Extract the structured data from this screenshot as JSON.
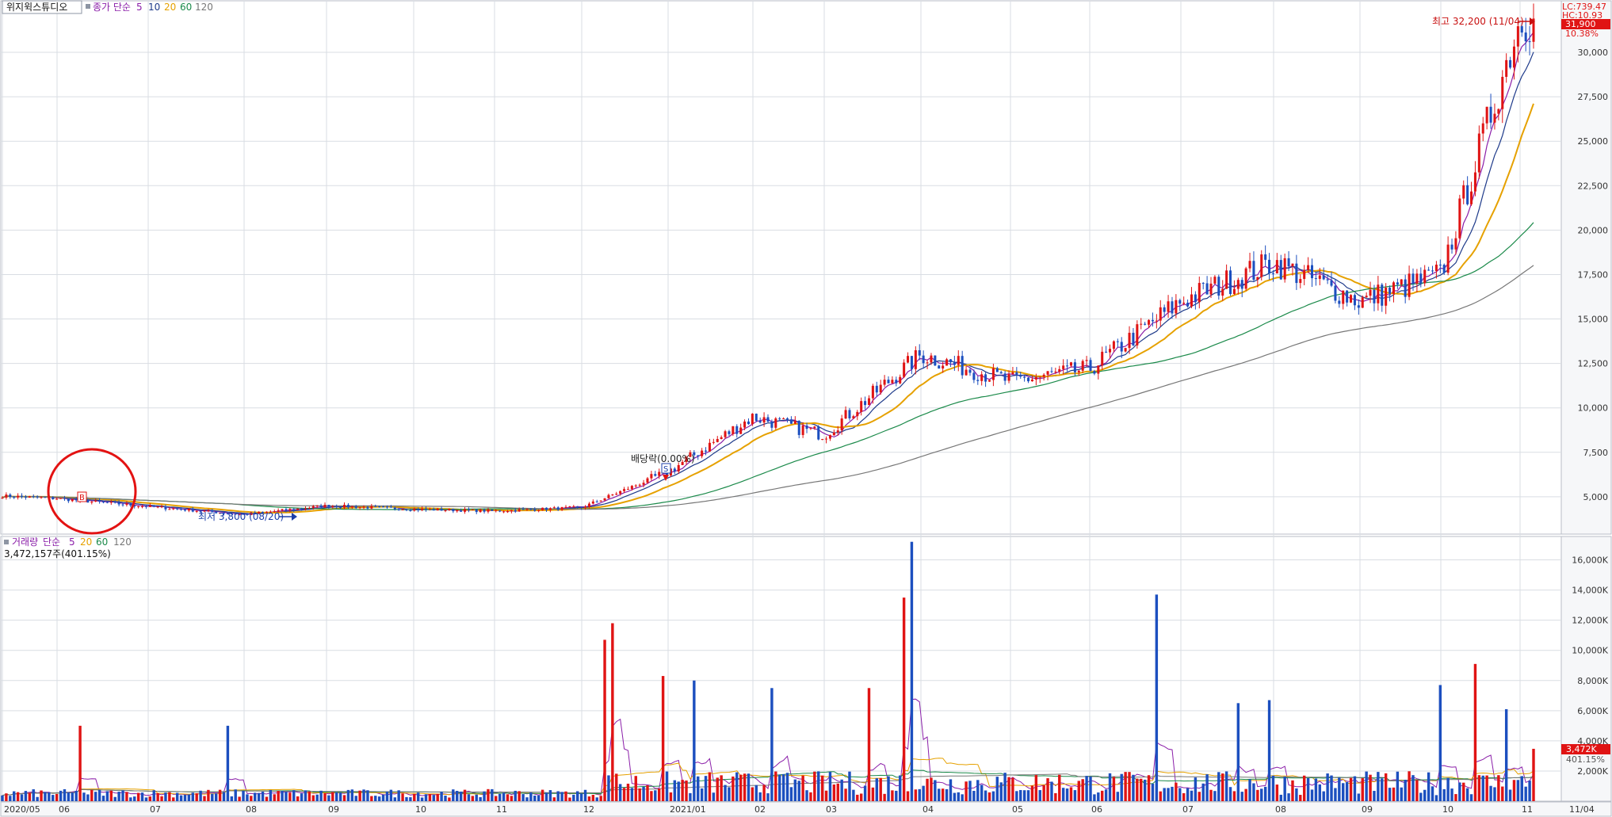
{
  "header": {
    "stock_name": "위지윅스튜디오",
    "price_label": "종가 단순",
    "ma_periods": [
      "5",
      "10",
      "20",
      "60",
      "120"
    ],
    "ma_colors": [
      "#8b1fa9",
      "#1e3a8a",
      "#e6a100",
      "#1b8a4a",
      "#777777"
    ]
  },
  "volume_header": {
    "label": "거래량",
    "type": "단순",
    "ma_periods": [
      "5",
      "20",
      "60",
      "120"
    ],
    "current": "3,472,157주(401.15%)"
  },
  "top_right": {
    "lc": "LC:739.47",
    "hc": "HC:10.93",
    "price_box": "31,900",
    "pct": "10.38%"
  },
  "annotations": {
    "high": "최고 32,200 (11/04)",
    "low": "최저 3,800 (08/20)",
    "dividend": "배당락(0.00%)",
    "buy_marker": "B",
    "sell_marker": "S"
  },
  "volume_box": {
    "value": "3,472K",
    "pct": "401.15%"
  },
  "x_axis_labels": [
    "2020/05",
    "06",
    "07",
    "08",
    "09",
    "10",
    "11",
    "12",
    "2021/01",
    "02",
    "03",
    "04",
    "05",
    "06",
    "07",
    "08",
    "09",
    "10",
    "11"
  ],
  "last_date": "11/04",
  "colors": {
    "up": "#e01414",
    "down": "#1c4fbf",
    "grid": "#d9dde3",
    "accent": "#e01414"
  },
  "chart_data": [
    {
      "type": "candlestick",
      "period": "2020/05 – 2021/11",
      "yticks": [
        "5,000",
        "7,500",
        "10,000",
        "12,500",
        "15,000",
        "17,500",
        "20,000",
        "22,500",
        "25,000",
        "27,500",
        "30,000"
      ],
      "ylim": [
        2900,
        32900
      ],
      "monthly_close": [
        {
          "m": "2020/05",
          "close": 5050
        },
        {
          "m": "06",
          "close": 4900
        },
        {
          "m": "07",
          "close": 4450
        },
        {
          "m": "08",
          "close": 4000
        },
        {
          "m": "09",
          "close": 4500
        },
        {
          "m": "10",
          "close": 4300
        },
        {
          "m": "11",
          "close": 4200
        },
        {
          "m": "12",
          "close": 4400
        },
        {
          "m": "2021/01",
          "close": 6400
        },
        {
          "m": "02",
          "close": 9500
        },
        {
          "m": "03",
          "close": 8500
        },
        {
          "m": "04",
          "close": 13000
        },
        {
          "m": "05",
          "close": 11500
        },
        {
          "m": "06",
          "close": 12200
        },
        {
          "m": "07",
          "close": 16000
        },
        {
          "m": "08",
          "close": 18200
        },
        {
          "m": "09",
          "close": 16000
        },
        {
          "m": "10",
          "close": 17500
        },
        {
          "m": "11",
          "close": 31900
        }
      ],
      "high": 32200,
      "low": 3800
    },
    {
      "type": "bar",
      "series_label": "거래량",
      "yticks": [
        "2,000K",
        "4,000K",
        "6,000K",
        "8,000K",
        "10,000K",
        "12,000K",
        "14,000K",
        "16,000K"
      ],
      "ylim": [
        0,
        17500
      ],
      "unit": "K",
      "spikes": [
        {
          "date": "2020/06",
          "value": 5000
        },
        {
          "date": "2020/07",
          "value": 5000
        },
        {
          "date": "2020/12",
          "value": 10700
        },
        {
          "date": "2020/12",
          "value": 11800
        },
        {
          "date": "2021/01",
          "value": 8300
        },
        {
          "date": "2021/01",
          "value": 8000
        },
        {
          "date": "2021/02",
          "value": 7500
        },
        {
          "date": "2021/03",
          "value": 7500
        },
        {
          "date": "2021/04",
          "value": 13500
        },
        {
          "date": "2021/04",
          "value": 17200
        },
        {
          "date": "2021/06",
          "value": 13700
        },
        {
          "date": "2021/07",
          "value": 6500
        },
        {
          "date": "2021/08",
          "value": 6700
        },
        {
          "date": "2021/10",
          "value": 7700
        },
        {
          "date": "2021/10",
          "value": 9100
        },
        {
          "date": "2021/11",
          "value": 6100
        }
      ],
      "last": 3472
    }
  ]
}
